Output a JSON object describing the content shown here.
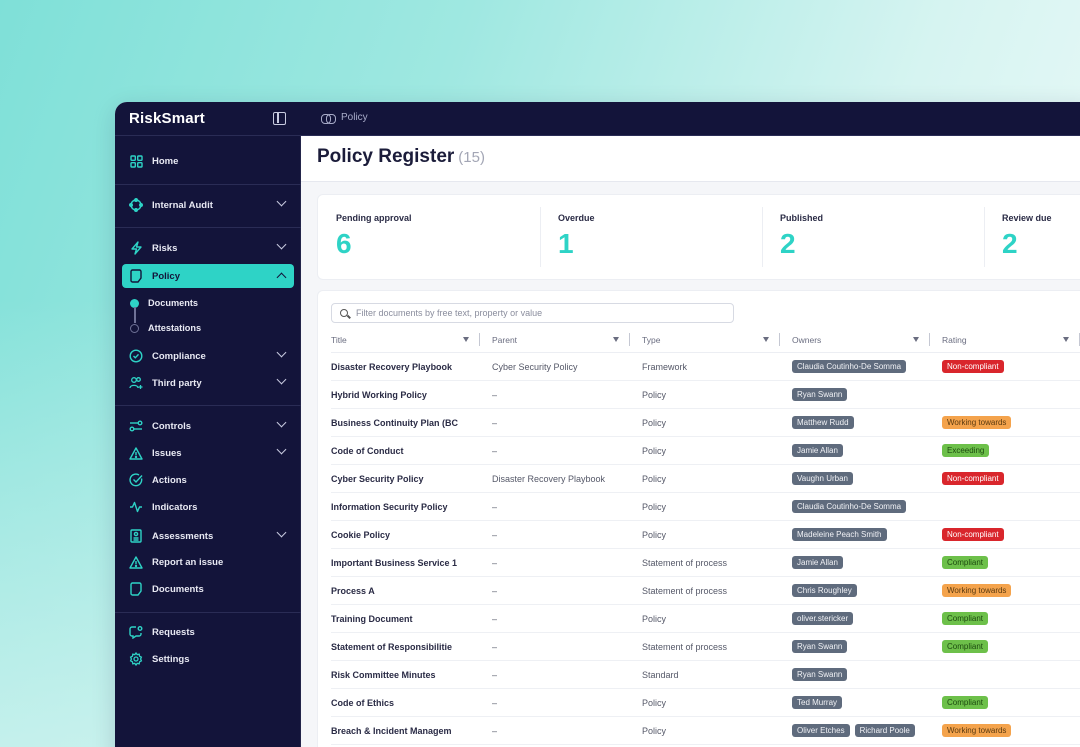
{
  "app": {
    "logo": "RiskSmart",
    "breadcrumb": "Policy"
  },
  "sidebar": {
    "items": [
      {
        "label": "Home",
        "icon": "grid-icon"
      },
      {
        "label": "Internal Audit",
        "icon": "audit-icon"
      },
      {
        "label": "Risks",
        "icon": "lightning-icon"
      },
      {
        "label": "Policy",
        "icon": "document-icon"
      },
      {
        "label": "Compliance",
        "icon": "check-circle-icon"
      },
      {
        "label": "Third party",
        "icon": "user-add-icon"
      },
      {
        "label": "Controls",
        "icon": "toggles-icon"
      },
      {
        "label": "Issues",
        "icon": "warning-icon"
      },
      {
        "label": "Actions",
        "icon": "check-icon"
      },
      {
        "label": "Indicators",
        "icon": "pulse-icon"
      },
      {
        "label": "Assessments",
        "icon": "clipboard-icon"
      },
      {
        "label": "Report an issue",
        "icon": "warning-icon"
      },
      {
        "label": "Documents",
        "icon": "document-icon"
      },
      {
        "label": "Requests",
        "icon": "chat-icon"
      },
      {
        "label": "Settings",
        "icon": "gear-icon"
      }
    ],
    "policy_sub": [
      {
        "label": "Documents",
        "active": true
      },
      {
        "label": "Attestations",
        "active": false
      }
    ]
  },
  "page": {
    "title": "Policy Register",
    "count": "(15)"
  },
  "stats": [
    {
      "label": "Pending approval",
      "value": "6"
    },
    {
      "label": "Overdue",
      "value": "1"
    },
    {
      "label": "Published",
      "value": "2"
    },
    {
      "label": "Review due",
      "value": "2"
    }
  ],
  "filter": {
    "placeholder": "Filter documents by free text, property or value"
  },
  "table": {
    "columns": [
      "Title",
      "Parent",
      "Type",
      "Owners",
      "Rating"
    ],
    "rows": [
      {
        "title": "Disaster Recovery Playbook",
        "parent": "Cyber Security Policy",
        "type": "Framework",
        "owners": [
          "Claudia Coutinho-De Somma"
        ],
        "rating": "Non-compliant",
        "rating_color": "red"
      },
      {
        "title": "Hybrid Working Policy",
        "parent": "–",
        "type": "Policy",
        "owners": [
          "Ryan Swann"
        ],
        "rating": "",
        "rating_color": ""
      },
      {
        "title": "Business Continuity Plan (BC",
        "parent": "–",
        "type": "Policy",
        "owners": [
          "Matthew Rudd"
        ],
        "rating": "Working towards",
        "rating_color": "orange"
      },
      {
        "title": "Code of Conduct",
        "parent": "–",
        "type": "Policy",
        "owners": [
          "Jamie Allan"
        ],
        "rating": "Exceeding",
        "rating_color": "green"
      },
      {
        "title": "Cyber Security Policy",
        "parent": "Disaster Recovery Playbook",
        "type": "Policy",
        "owners": [
          "Vaughn Urban"
        ],
        "rating": "Non-compliant",
        "rating_color": "red"
      },
      {
        "title": "Information Security Policy",
        "parent": "–",
        "type": "Policy",
        "owners": [
          "Claudia Coutinho-De Somma"
        ],
        "rating": "",
        "rating_color": ""
      },
      {
        "title": "Cookie Policy",
        "parent": "–",
        "type": "Policy",
        "owners": [
          "Madeleine Peach Smith"
        ],
        "rating": "Non-compliant",
        "rating_color": "red"
      },
      {
        "title": "Important Business Service 1",
        "parent": "–",
        "type": "Statement of process",
        "owners": [
          "Jamie Allan"
        ],
        "rating": "Compliant",
        "rating_color": "green"
      },
      {
        "title": "Process A",
        "parent": "–",
        "type": "Statement of process",
        "owners": [
          "Chris Roughley"
        ],
        "rating": "Working towards",
        "rating_color": "orange"
      },
      {
        "title": "Training Document",
        "parent": "–",
        "type": "Policy",
        "owners": [
          "oliver.stericker"
        ],
        "rating": "Compliant",
        "rating_color": "green"
      },
      {
        "title": "Statement of Responsibilitie",
        "parent": "–",
        "type": "Statement of process",
        "owners": [
          "Ryan Swann"
        ],
        "rating": "Compliant",
        "rating_color": "green"
      },
      {
        "title": "Risk Committee Minutes",
        "parent": "–",
        "type": "Standard",
        "owners": [
          "Ryan Swann"
        ],
        "rating": "",
        "rating_color": ""
      },
      {
        "title": "Code of Ethics",
        "parent": "–",
        "type": "Policy",
        "owners": [
          "Ted Murray"
        ],
        "rating": "Compliant",
        "rating_color": "green"
      },
      {
        "title": "Breach & Incident Managem",
        "parent": "–",
        "type": "Policy",
        "owners": [
          "Oliver Etches",
          "Richard Poole"
        ],
        "rating": "Working towards",
        "rating_color": "orange"
      }
    ]
  },
  "colors": {
    "accent": "#2ed3c6",
    "sidebar_bg": "#13143a",
    "owner_chip": "#5f6b7d",
    "non_compliant": "#d9262c",
    "working_towards": "#f4a34c",
    "compliant": "#6dc04a"
  }
}
